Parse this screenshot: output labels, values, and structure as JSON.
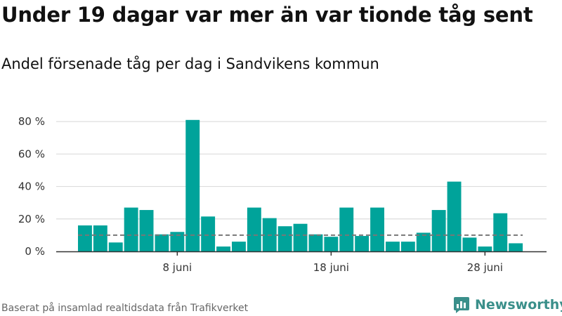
{
  "header": {
    "title": "Under 19 dagar var mer än var tionde tåg sent",
    "subtitle": "Andel försenade tåg per dag i Sandvikens kommun"
  },
  "footer": {
    "source": "Baserat på insamlad realtidsdata från Trafikverket",
    "logo_text": "Newsworthy"
  },
  "colors": {
    "bar": "#00a39a",
    "reference_line": "#777777",
    "grid": "#dddddd",
    "axis": "#333333",
    "logo": "#3a8f8a"
  },
  "chart_data": {
    "type": "bar",
    "title": "",
    "xlabel": "",
    "ylabel": "",
    "x_start": "2 juni",
    "x_end": "30 juni",
    "x": [
      "2 juni",
      "3 juni",
      "4 juni",
      "5 juni",
      "6 juni",
      "7 juni",
      "8 juni",
      "9 juni",
      "10 juni",
      "11 juni",
      "12 juni",
      "13 juni",
      "14 juni",
      "15 juni",
      "16 juni",
      "17 juni",
      "18 juni",
      "19 juni",
      "20 juni",
      "21 juni",
      "22 juni",
      "23 juni",
      "24 juni",
      "25 juni",
      "26 juni",
      "27 juni",
      "28 juni",
      "29 juni",
      "30 juni"
    ],
    "values": [
      16,
      16,
      5.5,
      27,
      25.5,
      10.5,
      12,
      81,
      21.5,
      3,
      6,
      27,
      20.5,
      15.5,
      17,
      10.5,
      9,
      27,
      9.5,
      27,
      6,
      6,
      11.5,
      25.5,
      43,
      8.5,
      3,
      23.5,
      5
    ],
    "reference_value": 10,
    "ylim": [
      0,
      90
    ],
    "yticks": [
      0,
      20,
      40,
      60,
      80
    ],
    "ytick_labels": [
      "0 %",
      "20 %",
      "40 %",
      "60 %",
      "80 %"
    ],
    "xtick_indices": [
      6,
      16,
      26
    ],
    "xtick_labels": [
      "8 juni",
      "18 juni",
      "28 juni"
    ],
    "grid": true
  }
}
